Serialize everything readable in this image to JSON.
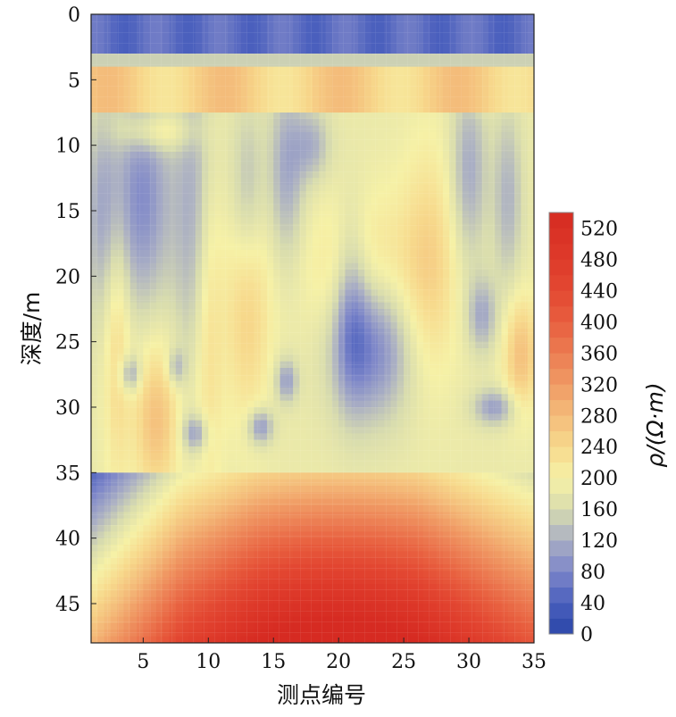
{
  "chart_data": {
    "type": "heatmap",
    "title": "",
    "xlabel": "测点编号",
    "ylabel": "深度/m",
    "colorbar_label": "ρ/(Ω·m)",
    "xlim": [
      1,
      35
    ],
    "ylim": [
      0,
      48
    ],
    "x_ticks": [
      5,
      10,
      15,
      20,
      25,
      30,
      35
    ],
    "y_ticks": [
      0,
      5,
      10,
      15,
      20,
      25,
      30,
      35,
      40,
      45
    ],
    "colorbar_ticks": [
      0,
      40,
      80,
      120,
      160,
      200,
      240,
      280,
      320,
      360,
      400,
      440,
      480,
      520
    ],
    "color_range": [
      0,
      540
    ],
    "colormap_stops": [
      {
        "value": 0,
        "color": "#2a45a8"
      },
      {
        "value": 40,
        "color": "#4a5fbd"
      },
      {
        "value": 80,
        "color": "#7d86c9"
      },
      {
        "value": 120,
        "color": "#a9aec4"
      },
      {
        "value": 160,
        "color": "#d8dcae"
      },
      {
        "value": 200,
        "color": "#f6f1a6"
      },
      {
        "value": 240,
        "color": "#f7d98c"
      },
      {
        "value": 280,
        "color": "#f4bc7a"
      },
      {
        "value": 320,
        "color": "#f09a64"
      },
      {
        "value": 360,
        "color": "#ec7c52"
      },
      {
        "value": 400,
        "color": "#e85f3f"
      },
      {
        "value": 440,
        "color": "#e34832"
      },
      {
        "value": 480,
        "color": "#de3a2a"
      },
      {
        "value": 540,
        "color": "#d62b22"
      }
    ]
  }
}
